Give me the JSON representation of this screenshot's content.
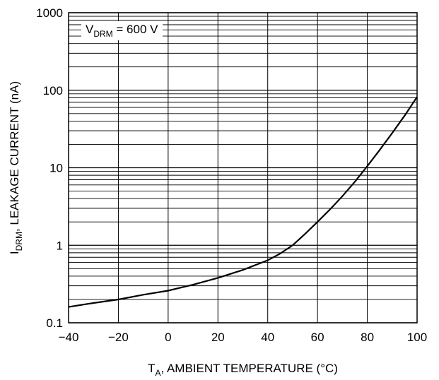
{
  "chart_data": {
    "type": "line",
    "xlabel": {
      "main": "T",
      "sub": "A",
      "rest": ", AMBIENT TEMPERATURE (°C)"
    },
    "ylabel": {
      "main": "I",
      "sub": "DRM",
      "rest": ", LEAKAGE CURRENT (nA)"
    },
    "annotation": {
      "main": "V",
      "sub": "DRM",
      "rest": " = 600 V"
    },
    "xlim": [
      -40,
      100
    ],
    "ylim": [
      0.1,
      1000
    ],
    "yscale": "log",
    "grid": true,
    "x_ticks": [
      "−40",
      "−20",
      "0",
      "20",
      "40",
      "60",
      "80",
      "100"
    ],
    "y_ticks": [
      "0.1",
      "1",
      "10",
      "100",
      "1000"
    ],
    "series": [
      {
        "x": [
          -40,
          -30,
          -20,
          -10,
          0,
          10,
          20,
          30,
          40,
          45,
          50,
          55,
          60,
          65,
          70,
          75,
          80,
          85,
          90,
          95,
          100
        ],
        "y": [
          0.16,
          0.18,
          0.2,
          0.23,
          0.26,
          0.31,
          0.38,
          0.48,
          0.64,
          0.78,
          1.0,
          1.4,
          2.0,
          2.9,
          4.3,
          6.6,
          10.5,
          17,
          28,
          47,
          82
        ]
      }
    ]
  }
}
